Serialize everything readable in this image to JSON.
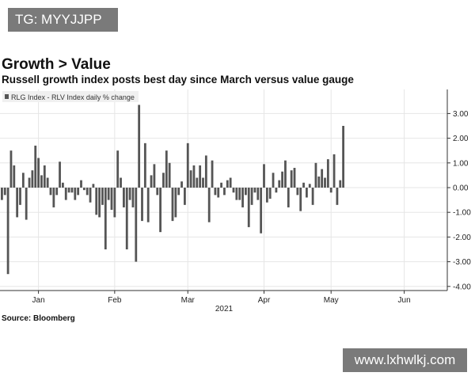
{
  "watermarks": {
    "top": "TG: MYYJJPP",
    "bottom": "www.lxhwlkj.com"
  },
  "title": "Growth > Value",
  "subtitle": "Russell growth index posts best day since March versus value gauge",
  "source": "Source: Bloomberg",
  "colors": {
    "bar": "#555555",
    "grid": "#e6e6e6",
    "axis": "#333333",
    "legend_bg": "#f0f0f0"
  },
  "chart_data": {
    "type": "bar",
    "title": "Growth > Value",
    "subtitle": "Russell growth index posts best day since March versus value gauge",
    "legend": [
      "RLG Index - RLV Index daily % change"
    ],
    "xlabel": "2021",
    "ylabel": "",
    "ylim": [
      -4,
      4
    ],
    "yticks": [
      3,
      2,
      1,
      0,
      -1,
      -2,
      -3,
      -4
    ],
    "ytick_labels": [
      "3.00",
      "2.00",
      "1.00",
      "0.00",
      "-1.00",
      "-2.00",
      "-3.00",
      "-4.00"
    ],
    "months": [
      {
        "label": "Jan",
        "index": 12
      },
      {
        "label": "Feb",
        "index": 37
      },
      {
        "label": "Mar",
        "index": 61
      },
      {
        "label": "Apr",
        "index": 86
      },
      {
        "label": "May",
        "index": 108
      },
      {
        "label": "Jun",
        "index": 132
      }
    ],
    "values": [
      -0.5,
      -0.3,
      -3.5,
      1.5,
      0.9,
      -1.2,
      -0.7,
      0.6,
      -1.3,
      0.4,
      0.7,
      1.7,
      1.2,
      0.5,
      0.9,
      0.4,
      -0.3,
      -0.8,
      -0.3,
      1.05,
      0.2,
      -0.5,
      -0.2,
      -0.2,
      -0.5,
      -0.3,
      0.3,
      -0.1,
      -0.3,
      -0.6,
      0.15,
      -1.1,
      -1.2,
      -0.7,
      -2.5,
      -0.5,
      -0.9,
      -1.2,
      1.5,
      0.4,
      -0.8,
      -2.5,
      -0.5,
      -0.8,
      -3.0,
      3.35,
      -1.35,
      1.8,
      -1.4,
      0.5,
      0.95,
      -0.3,
      -1.8,
      0.6,
      1.5,
      1.0,
      -1.35,
      -1.2,
      -0.3,
      0.25,
      -0.7,
      1.8,
      0.7,
      0.9,
      0.4,
      0.9,
      0.4,
      1.3,
      -1.4,
      1.1,
      -0.3,
      -0.4,
      0.2,
      -0.3,
      0.3,
      0.4,
      -0.2,
      -0.5,
      -0.5,
      -0.8,
      -0.3,
      -1.6,
      -0.7,
      -0.2,
      -0.5,
      -1.85,
      0.95,
      -0.6,
      -0.45,
      0.6,
      -0.2,
      0.3,
      0.65,
      1.1,
      -0.8,
      0.7,
      0.8,
      -0.3,
      -0.95,
      0.2,
      -0.4,
      0.15,
      -0.7,
      1.0,
      0.45,
      0.75,
      0.4,
      1.15,
      -0.2,
      1.35,
      -0.7,
      0.3,
      2.5
    ]
  }
}
